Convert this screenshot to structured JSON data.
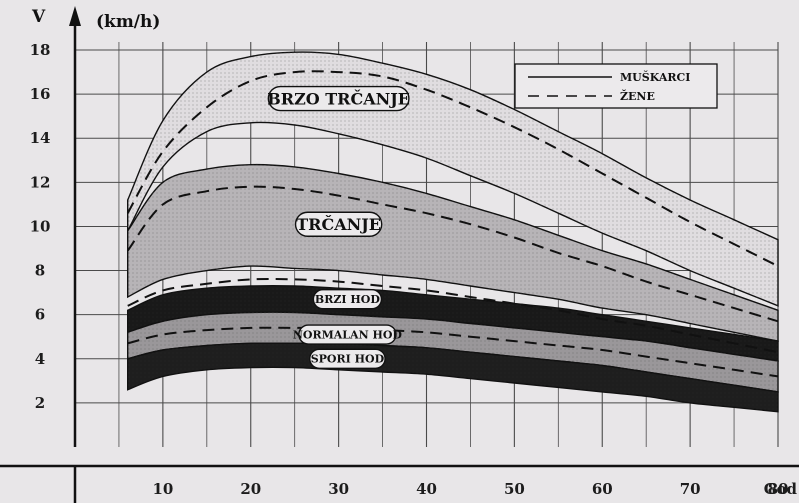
{
  "chart_data": {
    "type": "area",
    "xlabel": "God",
    "ylabel": "V",
    "yunit": "(km/h)",
    "xlim": [
      0,
      80
    ],
    "ylim": [
      0,
      18
    ],
    "x_ticks": [
      "10",
      "20",
      "30",
      "40",
      "50",
      "60",
      "70",
      "80"
    ],
    "y_ticks": [
      "2",
      "4",
      "6",
      "8",
      "10",
      "12",
      "14",
      "16",
      "18"
    ],
    "grid": true,
    "legend": {
      "position": "top-right",
      "entries": [
        {
          "label": "MUŠKARCI",
          "style": "solid"
        },
        {
          "label": "ŽENE",
          "style": "dashed"
        }
      ]
    },
    "x": [
      6,
      10,
      15,
      20,
      25,
      30,
      35,
      40,
      45,
      50,
      55,
      60,
      65,
      70,
      75,
      80
    ],
    "bands": [
      {
        "name": "BRZO TRČANJE",
        "shade": "#e0dde0",
        "label_x": 30,
        "label_y": 15.8,
        "upper": [
          11.2,
          14.8,
          17.0,
          17.7,
          17.9,
          17.8,
          17.4,
          16.9,
          16.2,
          15.3,
          14.3,
          13.3,
          12.2,
          11.2,
          10.3,
          9.4
        ],
        "lower": [
          9.8,
          12.7,
          14.3,
          14.7,
          14.6,
          14.2,
          13.7,
          13.1,
          12.3,
          11.5,
          10.6,
          9.7,
          8.9,
          8.0,
          7.2,
          6.4
        ]
      },
      {
        "name": "TRČANJE",
        "shade": "#b7b4b7",
        "label_x": 30,
        "label_y": 10.1,
        "upper": [
          9.8,
          12.0,
          12.6,
          12.8,
          12.7,
          12.4,
          12.0,
          11.5,
          10.9,
          10.3,
          9.6,
          8.9,
          8.3,
          7.6,
          6.9,
          6.2
        ],
        "lower": [
          6.8,
          7.6,
          8.0,
          8.2,
          8.1,
          8.0,
          7.8,
          7.6,
          7.3,
          7.0,
          6.7,
          6.3,
          6.0,
          5.6,
          5.2,
          4.8
        ]
      },
      {
        "name": "BRZI HOD",
        "shade": "#191919",
        "label_x": 31,
        "label_y": 6.7,
        "upper": [
          6.2,
          6.9,
          7.2,
          7.3,
          7.3,
          7.2,
          7.1,
          6.9,
          6.7,
          6.5,
          6.3,
          6.0,
          5.7,
          5.4,
          5.1,
          4.8
        ],
        "lower": [
          5.2,
          5.7,
          6.0,
          6.1,
          6.1,
          6.0,
          5.9,
          5.8,
          5.6,
          5.4,
          5.2,
          5.0,
          4.8,
          4.5,
          4.2,
          3.9
        ]
      },
      {
        "name": "NORMALAN HOD",
        "shade": "#9a979a",
        "label_x": 31,
        "label_y": 5.1,
        "upper": [
          5.2,
          5.7,
          6.0,
          6.1,
          6.1,
          6.0,
          5.9,
          5.8,
          5.6,
          5.4,
          5.2,
          5.0,
          4.8,
          4.5,
          4.2,
          3.9
        ],
        "lower": [
          4.0,
          4.4,
          4.6,
          4.7,
          4.7,
          4.7,
          4.6,
          4.5,
          4.3,
          4.1,
          3.9,
          3.7,
          3.4,
          3.1,
          2.8,
          2.5
        ]
      },
      {
        "name": "SPORI HOD",
        "shade": "#1e1e1e",
        "label_x": 31,
        "label_y": 4.0,
        "upper": [
          4.0,
          4.4,
          4.6,
          4.7,
          4.7,
          4.7,
          4.6,
          4.5,
          4.3,
          4.1,
          3.9,
          3.7,
          3.4,
          3.1,
          2.8,
          2.5
        ],
        "lower": [
          2.6,
          3.2,
          3.5,
          3.6,
          3.6,
          3.5,
          3.4,
          3.3,
          3.1,
          2.9,
          2.7,
          2.5,
          2.3,
          2.0,
          1.8,
          1.6
        ]
      }
    ],
    "female_lines": [
      {
        "name": "ŽENE BRZO TRČANJE",
        "values": [
          10.6,
          13.4,
          15.4,
          16.6,
          17.0,
          17.0,
          16.8,
          16.2,
          15.4,
          14.5,
          13.5,
          12.4,
          11.3,
          10.2,
          9.2,
          8.2
        ]
      },
      {
        "name": "ŽENE TRČANJE",
        "values": [
          8.9,
          11.0,
          11.6,
          11.8,
          11.7,
          11.4,
          11.0,
          10.6,
          10.1,
          9.5,
          8.8,
          8.2,
          7.5,
          6.9,
          6.3,
          5.7
        ]
      },
      {
        "name": "ŽENE TRČANJE DONJA",
        "values": [
          6.4,
          7.1,
          7.4,
          7.6,
          7.6,
          7.5,
          7.3,
          7.1,
          6.8,
          6.5,
          6.2,
          5.8,
          5.5,
          5.1,
          4.7,
          4.3
        ]
      },
      {
        "name": "ŽENE NORMALAN HOD",
        "values": [
          4.7,
          5.1,
          5.3,
          5.4,
          5.4,
          5.4,
          5.3,
          5.2,
          5.0,
          4.8,
          4.6,
          4.4,
          4.1,
          3.8,
          3.5,
          3.2
        ]
      }
    ]
  }
}
